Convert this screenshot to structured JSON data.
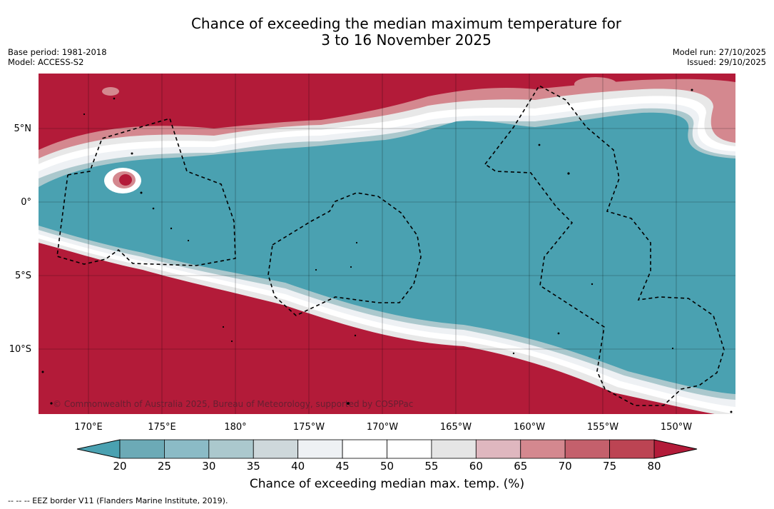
{
  "header": {
    "title_line1": "Chance of exceeding the median maximum temperature for",
    "title_line2": "3 to 16 November 2025",
    "base_period": "Base period: 1981-2018",
    "model": "Model: ACCESS-S2",
    "model_run": "Model run: 27/10/2025",
    "issued": "Issued: 29/10/2025"
  },
  "map": {
    "copyright": "© Commonwealth of Australia 2025, Bureau of Meteorology, supported by COSPPac",
    "lat_labels": [
      "5°N",
      "0°",
      "5°S",
      "10°S"
    ],
    "lon_labels": [
      "170°E",
      "175°E",
      "180°",
      "175°W",
      "170°W",
      "165°W",
      "160°W",
      "155°W",
      "150°W"
    ],
    "colors": {
      "above": "#b31b39",
      "below": "#4aa1b1"
    }
  },
  "colorbar": {
    "ticks": [
      "20",
      "25",
      "30",
      "35",
      "40",
      "45",
      "50",
      "55",
      "60",
      "65",
      "70",
      "75",
      "80"
    ],
    "colors": [
      "#4aa1b1",
      "#6caab6",
      "#8bbbc6",
      "#abc8cd",
      "#ced8db",
      "#eef1f4",
      "#ffffff",
      "#ffffff",
      "#e5e5e5",
      "#dfb7bf",
      "#d4888f",
      "#c4606c",
      "#bc4453",
      "#b31b39"
    ],
    "label": "Chance of exceeding median max. temp. (%)"
  },
  "footer": {
    "legend": "--  --  -- EEZ border V11 (Flanders Marine Institute, 2019)."
  }
}
